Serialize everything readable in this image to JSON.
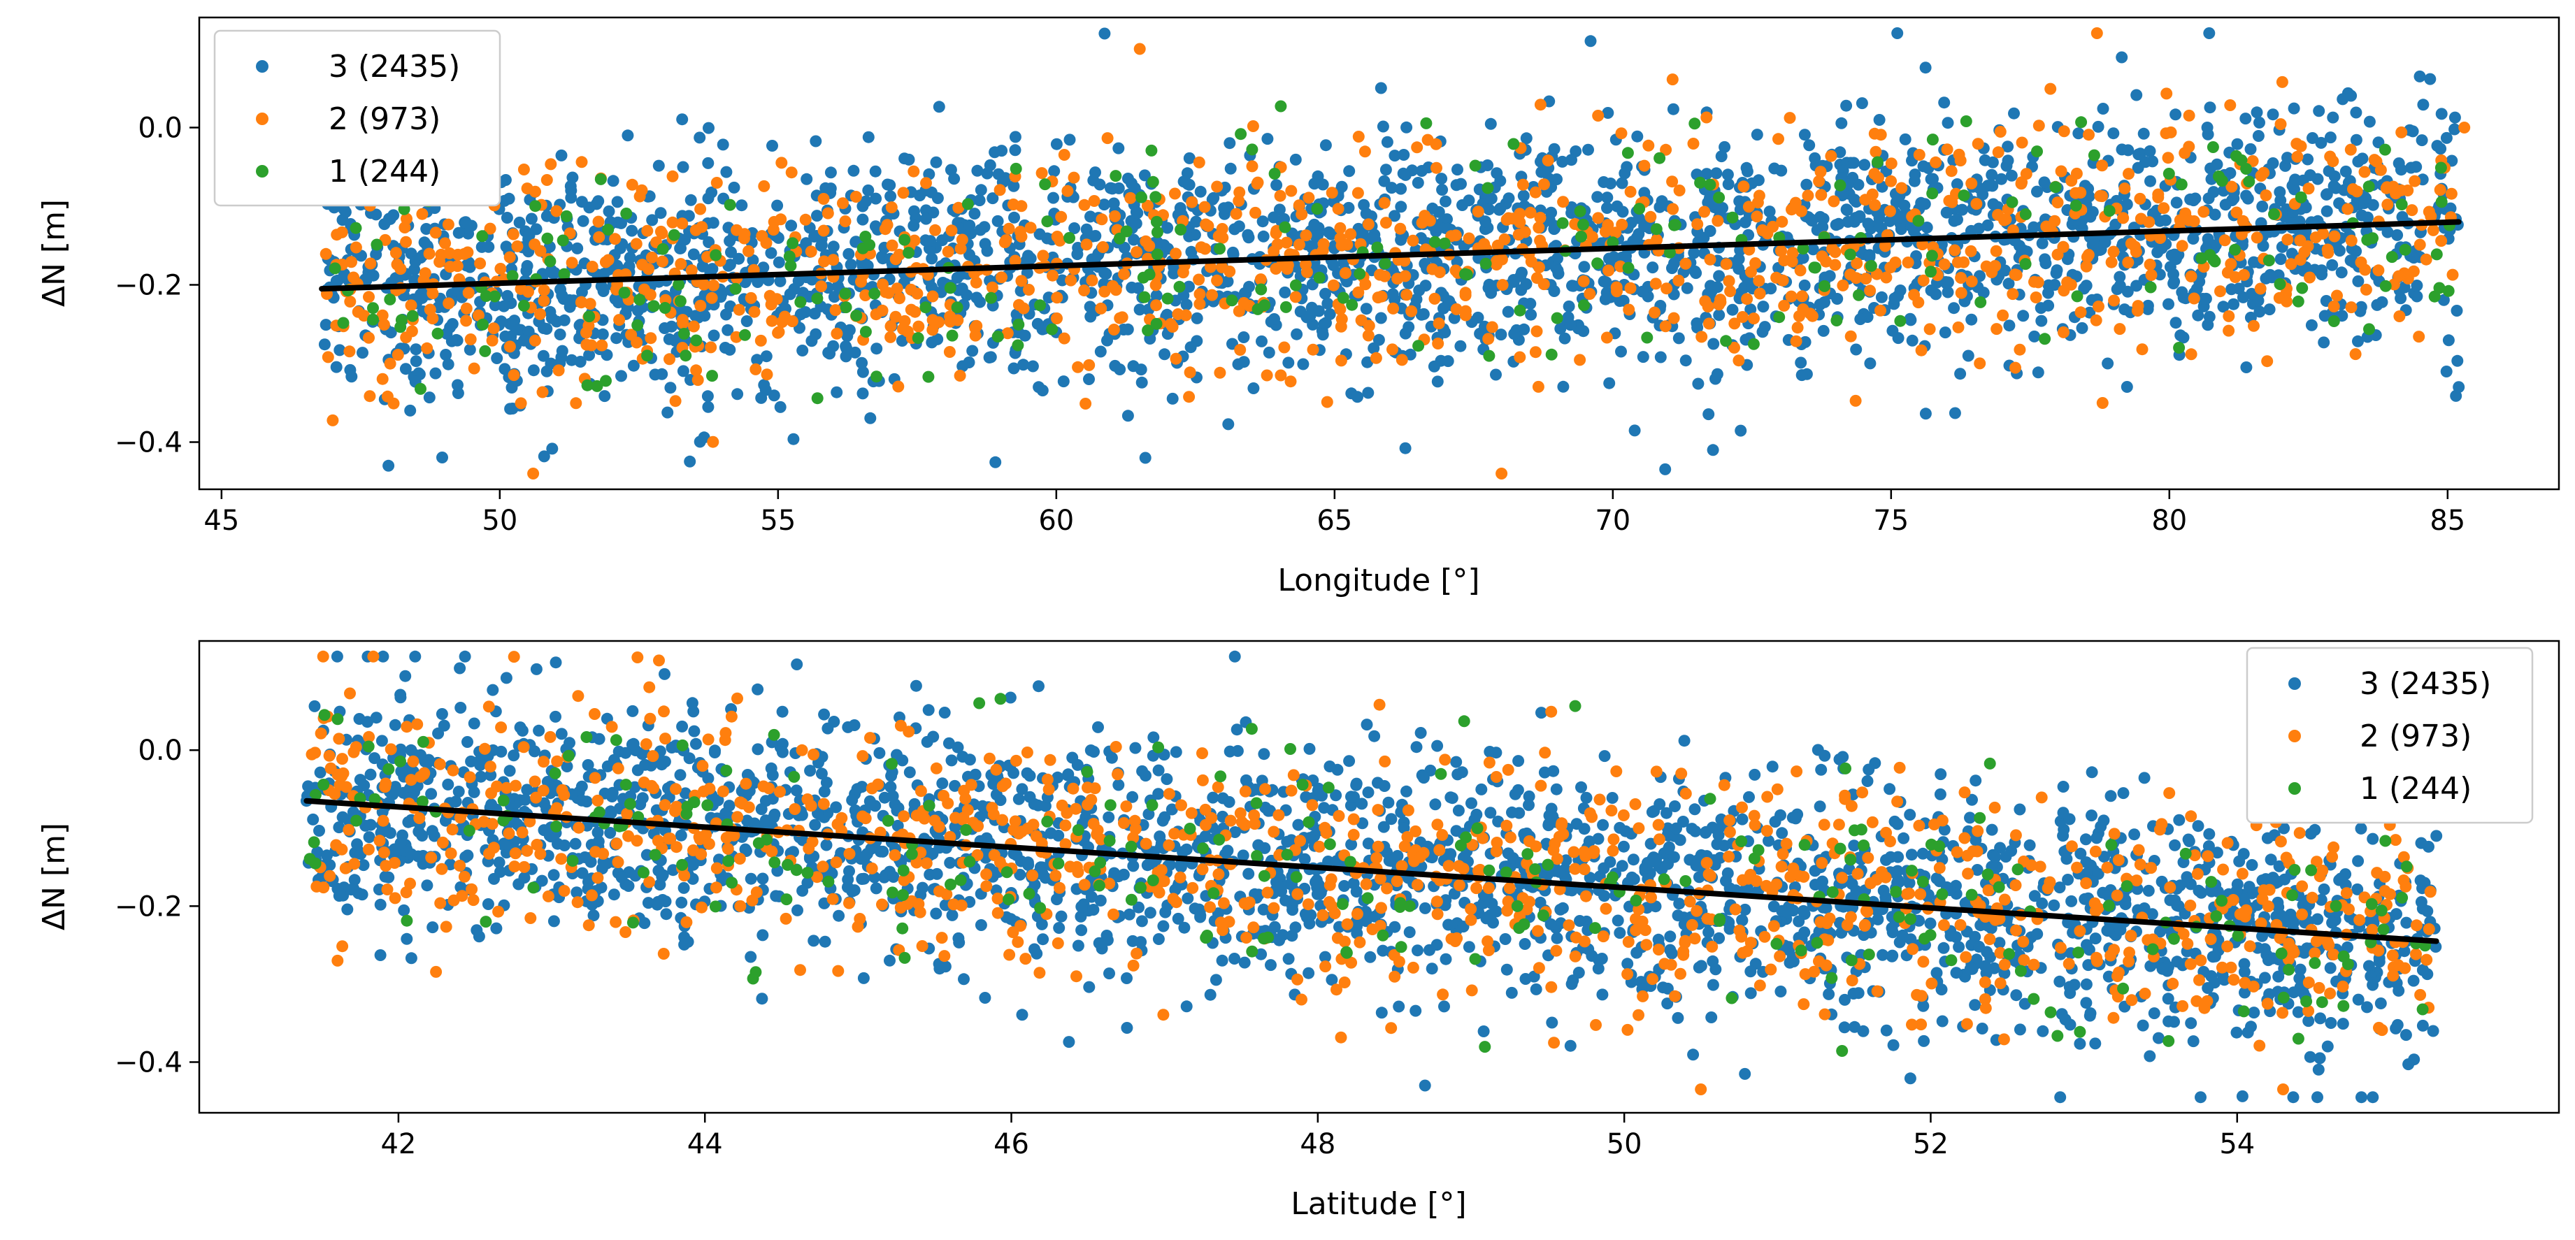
{
  "chart_data": [
    {
      "type": "scatter",
      "title": "",
      "xlabel": "Longitude [°]",
      "ylabel": "ΔN [m]",
      "xlim": [
        44.6,
        87.0
      ],
      "ylim": [
        -0.46,
        0.14
      ],
      "xticks": [
        45,
        50,
        55,
        60,
        65,
        70,
        75,
        80,
        85
      ],
      "yticks": [
        0.0,
        -0.2,
        -0.4
      ],
      "ytick_labels": [
        "0.0",
        "−0.2",
        "−0.4"
      ],
      "legend_position": "upper-left",
      "series": [
        {
          "name": "3 (2435)",
          "color": "#1f77b4",
          "count": 2435
        },
        {
          "name": "2 (973)",
          "color": "#ff7f0e",
          "count": 973
        },
        {
          "name": "1 (244)",
          "color": "#2ca02c",
          "count": 244
        }
      ],
      "point_cloud": {
        "x_range": [
          46.8,
          85.2
        ],
        "seed": 11
      },
      "trend_line": {
        "x": [
          46.8,
          85.2
        ],
        "y": [
          -0.205,
          -0.12
        ],
        "color": "#000000"
      },
      "points": [
        {
          "s": 0,
          "x": 48.0,
          "y": -0.43
        },
        {
          "s": 1,
          "x": 50.6,
          "y": -0.44
        },
        {
          "s": 1,
          "x": 68.0,
          "y": -0.44
        },
        {
          "s": 0,
          "x": 69.6,
          "y": 0.11
        },
        {
          "s": 1,
          "x": 78.7,
          "y": 0.12
        },
        {
          "s": 0,
          "x": 84.5,
          "y": 0.065
        },
        {
          "s": 0,
          "x": 85.2,
          "y": -0.33
        },
        {
          "s": 1,
          "x": 85.3,
          "y": 0.0
        },
        {
          "s": 0,
          "x": 61.6,
          "y": -0.42
        },
        {
          "s": 0,
          "x": 71.8,
          "y": -0.41
        },
        {
          "s": 1,
          "x": 61.5,
          "y": 0.1
        },
        {
          "s": 0,
          "x": 52.3,
          "y": -0.01
        }
      ]
    },
    {
      "type": "scatter",
      "title": "",
      "xlabel": "Latitude [°]",
      "ylabel": "ΔN [m]",
      "xlim": [
        40.7,
        56.1
      ],
      "ylim": [
        -0.465,
        0.14
      ],
      "xticks": [
        42,
        44,
        46,
        48,
        50,
        52,
        54
      ],
      "yticks": [
        0.0,
        -0.2,
        -0.4
      ],
      "ytick_labels": [
        "0.0",
        "−0.2",
        "−0.4"
      ],
      "legend_position": "upper-right",
      "series": [
        {
          "name": "3 (2435)",
          "color": "#1f77b4",
          "count": 2435
        },
        {
          "name": "2 (973)",
          "color": "#ff7f0e",
          "count": 973
        },
        {
          "name": "1 (244)",
          "color": "#2ca02c",
          "count": 244
        }
      ],
      "point_cloud": {
        "x_range": [
          41.4,
          55.3
        ],
        "seed": 23
      },
      "trend_line": {
        "x": [
          41.4,
          55.3
        ],
        "y": [
          -0.065,
          -0.245
        ],
        "color": "#000000"
      },
      "points": [
        {
          "s": 0,
          "x": 42.4,
          "y": 0.105
        },
        {
          "s": 1,
          "x": 43.7,
          "y": 0.115
        },
        {
          "s": 0,
          "x": 44.6,
          "y": 0.11
        },
        {
          "s": 0,
          "x": 48.7,
          "y": -0.43
        },
        {
          "s": 1,
          "x": 50.5,
          "y": -0.435
        },
        {
          "s": 1,
          "x": 54.3,
          "y": -0.435
        },
        {
          "s": 0,
          "x": 41.4,
          "y": -0.065
        },
        {
          "s": 0,
          "x": 55.3,
          "y": -0.11
        },
        {
          "s": 2,
          "x": 54.4,
          "y": -0.37
        }
      ]
    }
  ]
}
